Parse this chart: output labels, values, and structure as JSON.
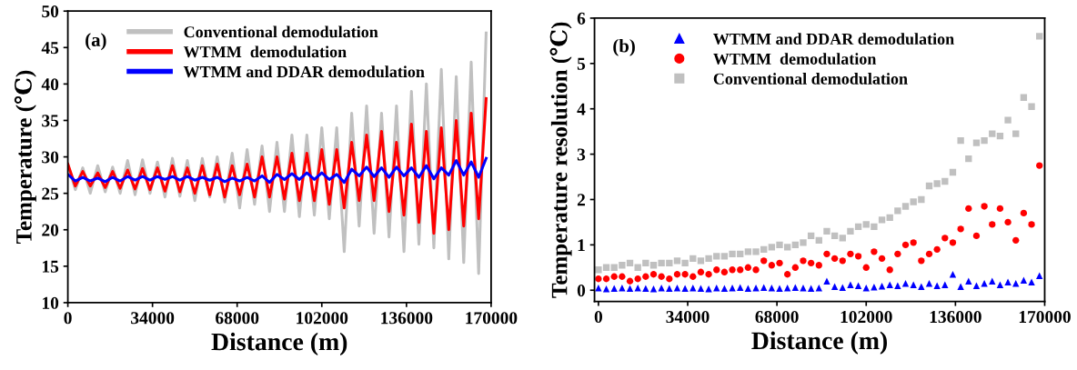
{
  "chart_data": [
    {
      "type": "line",
      "xlabel": "Distance (m)",
      "ylabel": "Temperature (℃)",
      "annotations": [
        "(a)"
      ],
      "x": [
        0,
        3000,
        6000,
        9000,
        12000,
        15000,
        18000,
        21000,
        24000,
        27000,
        30000,
        33000,
        36000,
        39000,
        42000,
        45000,
        48000,
        51000,
        54000,
        57000,
        60000,
        63000,
        66000,
        69000,
        72000,
        75000,
        78000,
        81000,
        84000,
        87000,
        90000,
        93000,
        96000,
        99000,
        102000,
        105000,
        108000,
        111000,
        114000,
        117000,
        120000,
        123000,
        126000,
        129000,
        132000,
        135000,
        138000,
        141000,
        144000,
        147000,
        150000,
        153000,
        156000,
        159000,
        162000,
        165000,
        168000
      ],
      "series": [
        {
          "name": "Conventional demodulation",
          "color": "#c0c0c0",
          "values": [
            29,
            25.5,
            28.5,
            25,
            28.8,
            25.2,
            28.6,
            25,
            29.5,
            24.8,
            29.6,
            25,
            29.3,
            24.5,
            29.8,
            24.6,
            29.5,
            24,
            29.8,
            24.5,
            30,
            23.8,
            30.5,
            23,
            31,
            23.5,
            31.5,
            22.5,
            32,
            22.5,
            33,
            21.8,
            33,
            22,
            34,
            21.5,
            34,
            17,
            36,
            20.5,
            37,
            19.5,
            36,
            19,
            37,
            17,
            39,
            18,
            40,
            17.5,
            42,
            16,
            41,
            15.5,
            43,
            14,
            47
          ]
        },
        {
          "name": "WTMM  demodulation",
          "color": "#ff0000",
          "values": [
            29,
            26,
            28,
            26,
            27.8,
            25.8,
            28,
            25.7,
            28.2,
            25.6,
            28.4,
            25.5,
            28.5,
            25.3,
            28.8,
            25.2,
            28.5,
            25,
            28.8,
            24.8,
            29,
            24.5,
            28.8,
            24.8,
            29,
            24.5,
            30,
            24.5,
            30,
            24.2,
            30.5,
            24,
            30.5,
            24,
            31,
            23.5,
            31,
            23,
            32,
            24,
            33,
            24,
            33.5,
            22.5,
            32,
            22,
            34.5,
            21,
            33.5,
            19.5,
            34,
            20,
            35,
            20.5,
            36,
            21.5,
            38
          ]
        },
        {
          "name": "WTMM and DDAR demodulation",
          "color": "#0000ff",
          "values": [
            27.6,
            26.7,
            27.2,
            26.7,
            27.1,
            26.6,
            27.2,
            26.7,
            27.3,
            26.8,
            27.3,
            26.8,
            27.3,
            26.9,
            27.3,
            26.8,
            27.3,
            26.8,
            27.2,
            26.8,
            27.2,
            26.6,
            27.1,
            26.7,
            27.2,
            26.7,
            27.4,
            26.5,
            27.6,
            26.9,
            27.7,
            26.9,
            27.8,
            26.9,
            27.8,
            26.9,
            27.6,
            26.5,
            28.3,
            27.4,
            28.6,
            27.3,
            28.5,
            27.2,
            28.6,
            27.4,
            28.5,
            27.2,
            28.8,
            27.0,
            28.5,
            27.5,
            29.5,
            27.5,
            29.3,
            27.2,
            29.8
          ]
        }
      ],
      "xlim": [
        0,
        170000
      ],
      "xticks": [
        0,
        34000,
        68000,
        102000,
        136000,
        170000
      ],
      "ylim": [
        10,
        50
      ],
      "yticks": [
        10,
        15,
        20,
        25,
        30,
        35,
        40,
        45,
        50
      ],
      "legend": "top left",
      "line_style": "solid"
    },
    {
      "type": "scatter",
      "xlabel": "Distance (m)",
      "ylabel": "Temperature resolution (℃)",
      "annotations": [
        "(b)"
      ],
      "x": [
        0,
        3000,
        6000,
        9000,
        12000,
        15000,
        18000,
        21000,
        24000,
        27000,
        30000,
        33000,
        36000,
        39000,
        42000,
        45000,
        48000,
        51000,
        54000,
        57000,
        60000,
        63000,
        66000,
        69000,
        72000,
        75000,
        78000,
        81000,
        84000,
        87000,
        90000,
        93000,
        96000,
        99000,
        102000,
        105000,
        108000,
        111000,
        114000,
        117000,
        120000,
        123000,
        126000,
        129000,
        132000,
        135000,
        138000,
        141000,
        144000,
        147000,
        150000,
        153000,
        156000,
        159000,
        162000,
        165000,
        168000
      ],
      "series": [
        {
          "name": "WTMM and DDAR demodulation",
          "color": "#0000ff",
          "marker": "triangle",
          "values": [
            0.05,
            0.03,
            0.04,
            0.05,
            0.04,
            0.05,
            0.04,
            0.03,
            0.05,
            0.04,
            0.05,
            0.04,
            0.05,
            0.04,
            0.03,
            0.05,
            0.04,
            0.05,
            0.06,
            0.04,
            0.05,
            0.06,
            0.05,
            0.04,
            0.05,
            0.06,
            0.05,
            0.04,
            0.05,
            0.2,
            0.08,
            0.06,
            0.12,
            0.1,
            0.05,
            0.07,
            0.09,
            0.12,
            0.1,
            0.15,
            0.12,
            0.08,
            0.15,
            0.1,
            0.12,
            0.35,
            0.08,
            0.2,
            0.1,
            0.15,
            0.2,
            0.12,
            0.18,
            0.15,
            0.22,
            0.18,
            0.32
          ]
        },
        {
          "name": "WTMM  demodulation",
          "color": "#ff0000",
          "marker": "circle",
          "values": [
            0.25,
            0.25,
            0.3,
            0.3,
            0.2,
            0.25,
            0.3,
            0.35,
            0.3,
            0.25,
            0.35,
            0.35,
            0.3,
            0.4,
            0.35,
            0.45,
            0.4,
            0.45,
            0.45,
            0.5,
            0.45,
            0.65,
            0.55,
            0.6,
            0.35,
            0.5,
            0.65,
            0.6,
            0.55,
            0.8,
            0.7,
            0.65,
            0.8,
            0.75,
            0.5,
            0.85,
            0.7,
            0.45,
            0.8,
            1.0,
            1.05,
            0.65,
            0.8,
            0.9,
            1.15,
            1.05,
            1.35,
            1.8,
            1.2,
            1.85,
            1.45,
            1.8,
            1.5,
            1.1,
            1.7,
            1.45,
            2.75
          ]
        },
        {
          "name": "Conventional demodulation",
          "color": "#c0c0c0",
          "marker": "square",
          "values": [
            0.45,
            0.5,
            0.5,
            0.55,
            0.6,
            0.5,
            0.6,
            0.55,
            0.6,
            0.6,
            0.65,
            0.6,
            0.7,
            0.65,
            0.7,
            0.75,
            0.75,
            0.8,
            0.8,
            0.85,
            0.85,
            0.9,
            0.95,
            1.0,
            0.95,
            1.0,
            1.05,
            1.2,
            1.1,
            1.3,
            1.2,
            1.15,
            1.3,
            1.4,
            1.45,
            1.4,
            1.55,
            1.6,
            1.75,
            1.85,
            1.95,
            2.0,
            2.3,
            2.35,
            2.4,
            2.6,
            3.3,
            2.9,
            3.25,
            3.3,
            3.45,
            3.4,
            3.75,
            3.45,
            4.25,
            4.05,
            5.6
          ]
        }
      ],
      "xlim": [
        -1500,
        170000
      ],
      "xticks": [
        0,
        34000,
        68000,
        102000,
        136000,
        170000
      ],
      "ylim": [
        -0.25,
        6
      ],
      "yticks": [
        0,
        1,
        2,
        3,
        4,
        5,
        6
      ],
      "legend": "top left"
    }
  ]
}
